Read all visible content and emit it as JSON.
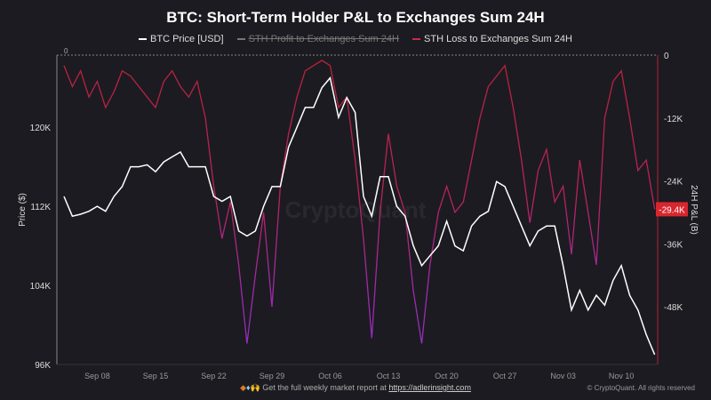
{
  "chart_data": {
    "type": "line",
    "title": "BTC: Short-Term Holder P&L to Exchanges Sum 24H",
    "legend": [
      {
        "name": "BTC Price [USD]",
        "color": "#ffffff",
        "hidden": false
      },
      {
        "name": "STH Profit to Exchanges Sum 24H",
        "color": "#888888",
        "hidden": true
      },
      {
        "name": "STH Loss to Exchanges Sum 24H",
        "color": "#c0304a",
        "hidden": false
      }
    ],
    "legend_position": "top-center",
    "ylabel_left": "Price ($)",
    "ylabel_right": "24H P&L (B)",
    "yticks_left": [
      "96K",
      "104K",
      "112K",
      "120K"
    ],
    "yticks_right": [
      "0",
      "-12K",
      "-24K",
      "-36K",
      "-48K"
    ],
    "ylim_left": [
      96000,
      127300
    ],
    "ylim_right": [
      -59000,
      0
    ],
    "xticks": [
      "Sep 08",
      "Sep 15",
      "Sep 22",
      "Sep 29",
      "Oct 06",
      "Oct 13",
      "Oct 20",
      "Oct 27",
      "Nov 03",
      "Nov 10"
    ],
    "x_start": "2025-09-04",
    "x_end": "2025-11-14",
    "grid": false,
    "top_left_label": "0",
    "current_value_label": "-29.4K",
    "colors": {
      "price": "#ffffff",
      "loss_shallow": "#b8223a",
      "loss_deep": "#9b2fc0",
      "badge": "#d8262e"
    },
    "series": [
      {
        "name": "BTC Price [USD]",
        "axis": "left",
        "values": [
          113000,
          111000,
          111200,
          111500,
          112000,
          111500,
          113000,
          114000,
          116000,
          116000,
          116200,
          115500,
          116500,
          117000,
          117500,
          116000,
          116000,
          116000,
          113000,
          112500,
          113000,
          109500,
          109000,
          109500,
          112000,
          114000,
          114000,
          118000,
          120000,
          122000,
          122000,
          124000,
          125000,
          121000,
          123000,
          121500,
          113000,
          111000,
          115000,
          115000,
          112000,
          111000,
          108000,
          106000,
          107000,
          108000,
          110500,
          108000,
          107500,
          110000,
          111000,
          111500,
          114500,
          114000,
          112000,
          110000,
          108000,
          109500,
          110000,
          110000,
          106000,
          101500,
          103500,
          101500,
          103000,
          102000,
          104500,
          106000,
          103000,
          101500,
          99000,
          97000
        ]
      },
      {
        "name": "STH Loss to Exchanges Sum 24H",
        "axis": "right",
        "values": [
          -2000,
          -6000,
          -3000,
          -8000,
          -5000,
          -10000,
          -7000,
          -3000,
          -4000,
          -6000,
          -8000,
          -10000,
          -5000,
          -3000,
          -6000,
          -8000,
          -5000,
          -12000,
          -25000,
          -35000,
          -28000,
          -40000,
          -55000,
          -42000,
          -30000,
          -48000,
          -25000,
          -15000,
          -8000,
          -3000,
          -2000,
          -1000,
          -2000,
          -10000,
          -8000,
          -20000,
          -35000,
          -54000,
          -30000,
          -15000,
          -25000,
          -30000,
          -45000,
          -55000,
          -40000,
          -30000,
          -25000,
          -30000,
          -28000,
          -20000,
          -12000,
          -6000,
          -4000,
          -2000,
          -10000,
          -20000,
          -32000,
          -22000,
          -18000,
          -28000,
          -25000,
          -38000,
          -20000,
          -30000,
          -40000,
          -12000,
          -5000,
          -3000,
          -12000,
          -22000,
          -20000,
          -29400
        ]
      }
    ]
  },
  "watermark": "CryptoQuant",
  "footer": {
    "text": "Get the full weekly market report at",
    "link": "https://adlerinsight.com",
    "copyright": "© CryptoQuant. All rights reserved"
  }
}
